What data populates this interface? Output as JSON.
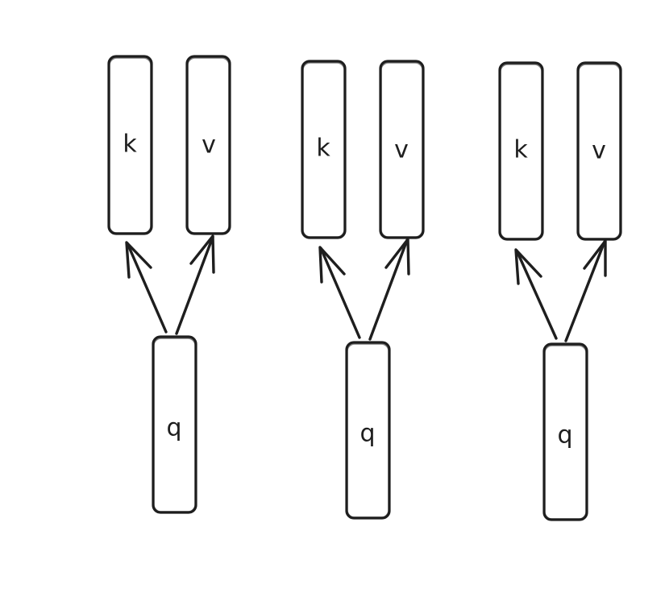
{
  "diagram": {
    "groups": [
      {
        "k": "k",
        "v": "v",
        "q": "q"
      },
      {
        "k": "k",
        "v": "v",
        "q": "q"
      },
      {
        "k": "k",
        "v": "v",
        "q": "q"
      }
    ]
  },
  "colors": {
    "stroke": "#1e1e1e",
    "background": "#ffffff"
  }
}
